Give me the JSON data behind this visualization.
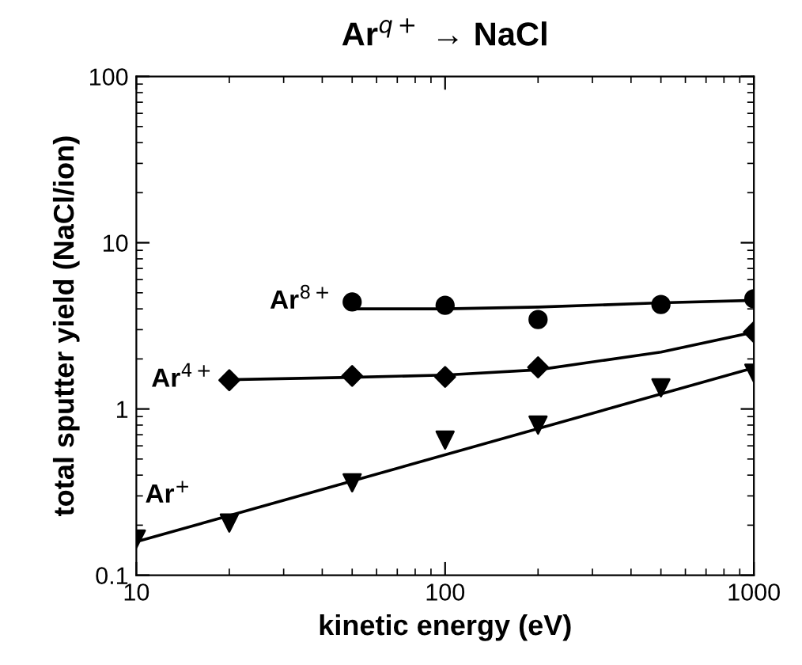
{
  "chart_data": {
    "type": "scatter",
    "title": "Ar$^{q+}$ → NaCl",
    "xlabel": "kinetic energy (eV)",
    "ylabel": "total sputter yield (NaCl/ion)",
    "log": "xy",
    "grid": false,
    "legend": false,
    "xlim": [
      10,
      1000
    ],
    "xticks": [
      10,
      100,
      1000
    ],
    "ylim": [
      0.1,
      100
    ],
    "yticks": [
      0.1,
      1,
      10,
      100
    ],
    "series": [
      {
        "name": "Ar$^{8+}$",
        "marker": "circle",
        "color": "#000000",
        "x": [
          50,
          100,
          200,
          500,
          1000
        ],
        "values": [
          4.4,
          4.2,
          3.45,
          4.25,
          4.6
        ]
      },
      {
        "name": "Ar$^{4+}$",
        "marker": "diamond",
        "color": "#000000",
        "x": [
          20,
          50,
          100,
          200,
          1000
        ],
        "values": [
          1.49,
          1.58,
          1.56,
          1.78,
          2.9
        ]
      },
      {
        "name": "Ar$^{+}$",
        "marker": "triangle",
        "color": "#000000",
        "x": [
          10,
          20,
          50,
          100,
          200,
          500,
          1000
        ],
        "values": [
          0.165,
          0.206,
          0.36,
          0.65,
          0.8,
          1.34,
          1.64
        ]
      },
      {
        "type": "line",
        "color": "#000000",
        "line_style": "solid",
        "x": [
          50,
          100,
          200,
          500,
          1000
        ],
        "values": [
          4.0,
          4.0,
          4.1,
          4.35,
          4.5
        ]
      },
      {
        "type": "line",
        "color": "#000000",
        "line_style": "solid",
        "x": [
          20,
          50,
          100,
          200,
          500,
          1000
        ],
        "values": [
          1.5,
          1.55,
          1.6,
          1.72,
          2.2,
          2.9
        ]
      },
      {
        "type": "line",
        "color": "#000000",
        "line_style": "solid",
        "x": [
          10,
          1000
        ],
        "values": [
          0.159,
          1.77
        ]
      }
    ]
  }
}
